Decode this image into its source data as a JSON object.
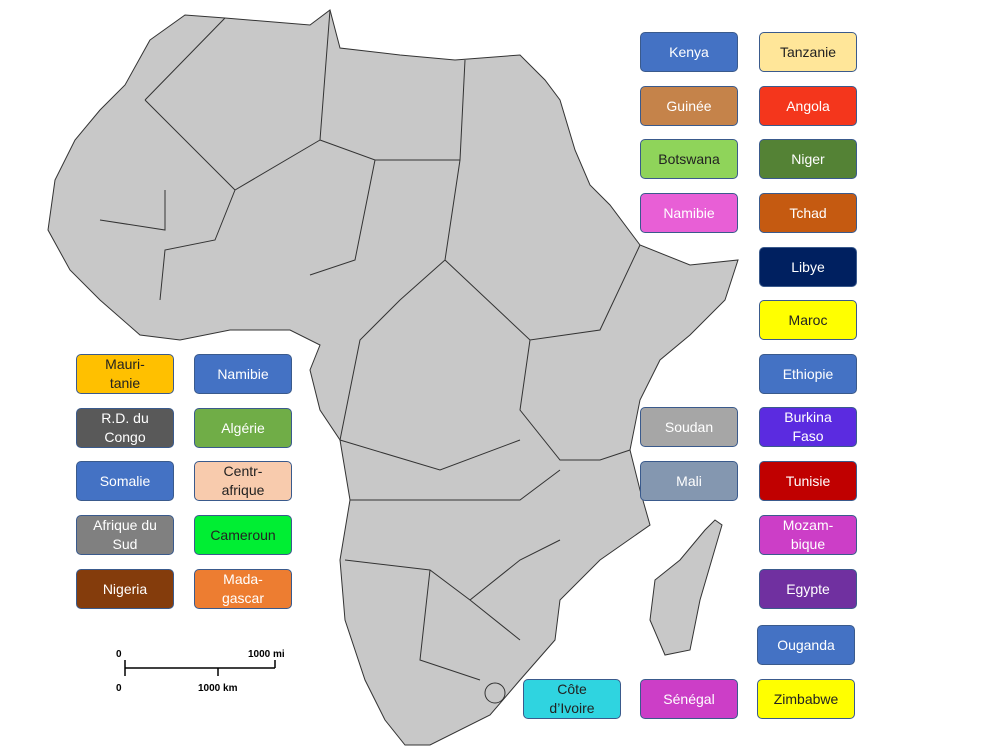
{
  "scale": {
    "mi_zero": "0",
    "mi_label": "1000 mi",
    "km_zero": "0",
    "km_label": "1000 km"
  },
  "labels": [
    {
      "text": "Kenya",
      "color": "#4472c4",
      "text_color": "#ffffff"
    },
    {
      "text": "Tanzanie",
      "color": "#ffe699",
      "text_color": "#222222"
    },
    {
      "text": "Guinée",
      "color": "#c5834a",
      "text_color": "#ffffff"
    },
    {
      "text": "Angola",
      "color": "#f4361c",
      "text_color": "#ffffff"
    },
    {
      "text": "Botswana",
      "color": "#8fd45a",
      "text_color": "#222222"
    },
    {
      "text": "Niger",
      "color": "#548235",
      "text_color": "#ffffff"
    },
    {
      "text": "Namibie",
      "color": "#e85fd6",
      "text_color": "#ffffff"
    },
    {
      "text": "Tchad",
      "color": "#c55a11",
      "text_color": "#ffffff"
    },
    {
      "text": "Libye",
      "color": "#002060",
      "text_color": "#ffffff"
    },
    {
      "text": "Maroc",
      "color": "#ffff00",
      "text_color": "#222222"
    },
    {
      "text": "Ethiopie",
      "color": "#4472c4",
      "text_color": "#ffffff"
    },
    {
      "text": "Soudan",
      "color": "#a6a6a6",
      "text_color": "#ffffff"
    },
    {
      "text": "Burkina\nFaso",
      "color": "#5b2be0",
      "text_color": "#ffffff"
    },
    {
      "text": "Mali",
      "color": "#8497b0",
      "text_color": "#ffffff"
    },
    {
      "text": "Tunisie",
      "color": "#c00000",
      "text_color": "#ffffff"
    },
    {
      "text": "Mozam-\nbique",
      "color": "#cc3ec7",
      "text_color": "#ffffff"
    },
    {
      "text": "Egypte",
      "color": "#7030a0",
      "text_color": "#ffffff"
    },
    {
      "text": "Ouganda",
      "color": "#4472c4",
      "text_color": "#ffffff"
    },
    {
      "text": "Côte\nd’Ivoire",
      "color": "#2fd4e0",
      "text_color": "#222222"
    },
    {
      "text": "Sénégal",
      "color": "#cc3ec7",
      "text_color": "#ffffff"
    },
    {
      "text": "Zimbabwe",
      "color": "#ffff00",
      "text_color": "#222222"
    },
    {
      "text": "Mauri-\ntanie",
      "color": "#ffc000",
      "text_color": "#222222"
    },
    {
      "text": "Namibie",
      "color": "#4472c4",
      "text_color": "#ffffff"
    },
    {
      "text": "R.D. du\nCongo",
      "color": "#595959",
      "text_color": "#ffffff"
    },
    {
      "text": "Algérie",
      "color": "#70ad47",
      "text_color": "#ffffff"
    },
    {
      "text": "Somalie",
      "color": "#4472c4",
      "text_color": "#ffffff"
    },
    {
      "text": "Centr-\nafrique",
      "color": "#f8cbad",
      "text_color": "#222222"
    },
    {
      "text": "Afrique du\nSud",
      "color": "#808080",
      "text_color": "#ffffff"
    },
    {
      "text": "Cameroun",
      "color": "#00ee33",
      "text_color": "#222222"
    },
    {
      "text": "Nigeria",
      "color": "#843c0c",
      "text_color": "#ffffff"
    },
    {
      "text": "Mada-\ngascar",
      "color": "#ed7d31",
      "text_color": "#ffffff"
    }
  ]
}
